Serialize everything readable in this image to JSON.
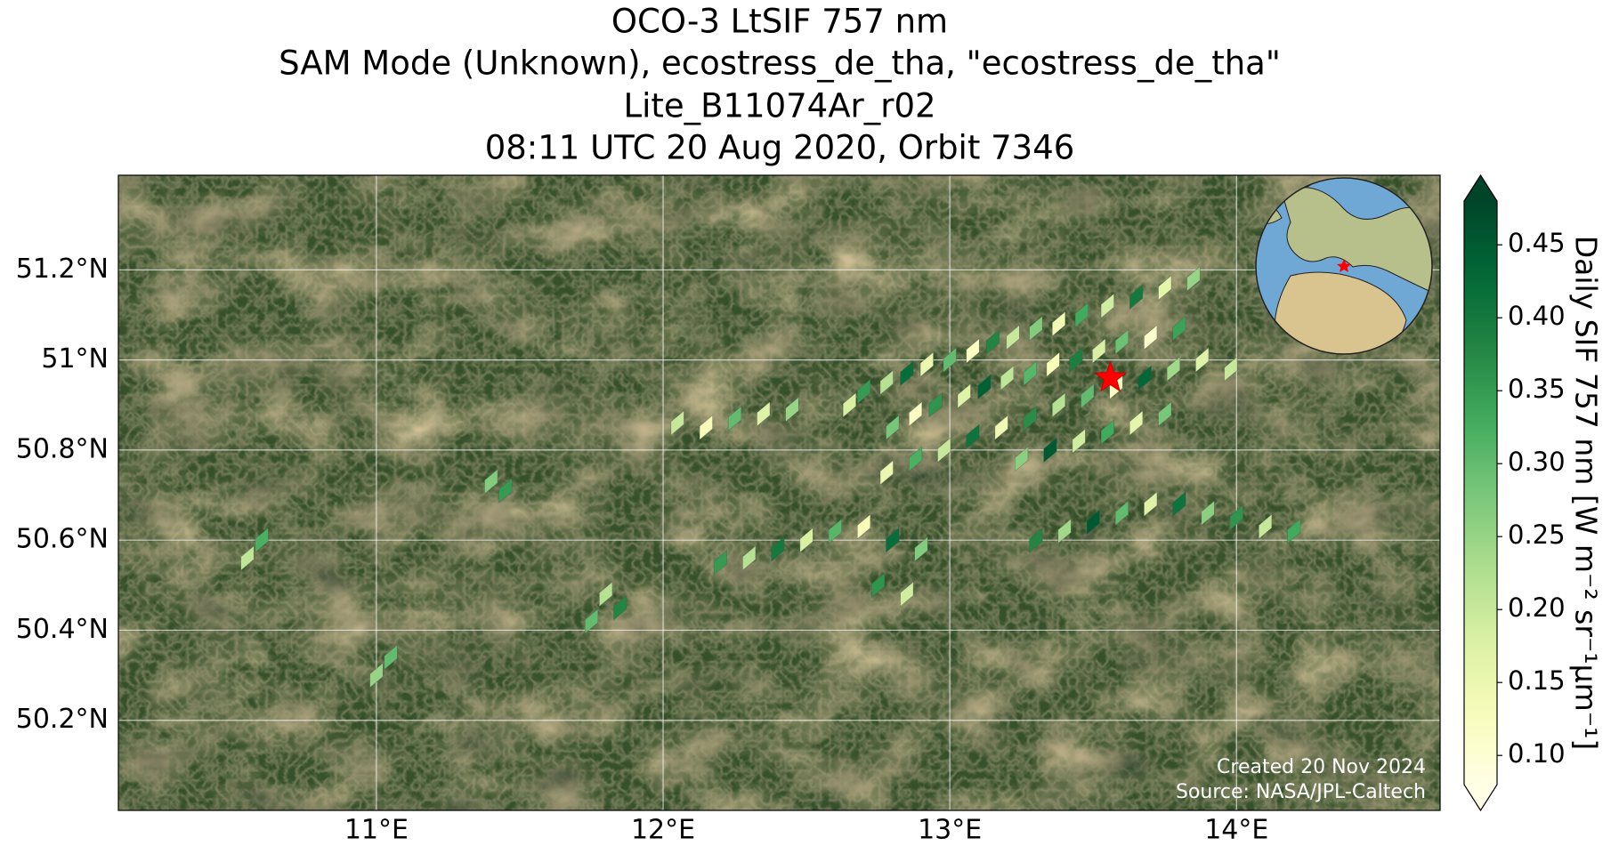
{
  "chart_data": {
    "type": "map",
    "title": [
      "OCO-3 LtSIF 757 nm",
      "SAM Mode (Unknown), ecostress_de_tha, \"ecostress_de_tha\"",
      "Lite_B11074Ar_r02",
      "08:11 UTC 20 Aug 2020, Orbit 7346"
    ],
    "xlim": [
      10.1,
      14.71
    ],
    "ylim": [
      50.0,
      51.41
    ],
    "xticks": [
      {
        "value": 11,
        "label": "11°E"
      },
      {
        "value": 12,
        "label": "12°E"
      },
      {
        "value": 13,
        "label": "13°E"
      },
      {
        "value": 14,
        "label": "14°E"
      }
    ],
    "yticks": [
      {
        "value": 50.2,
        "label": "50.2°N"
      },
      {
        "value": 50.4,
        "label": "50.4°N"
      },
      {
        "value": 50.6,
        "label": "50.6°N"
      },
      {
        "value": 50.8,
        "label": "50.8°N"
      },
      {
        "value": 51,
        "label": "51°N"
      },
      {
        "value": 51.2,
        "label": "51.2°N"
      }
    ],
    "grid": true,
    "colormap": "YlGn",
    "clim": [
      0.08,
      0.48
    ],
    "colorbar_ticks": [
      {
        "value": 0.1,
        "label": "0.10"
      },
      0.15,
      {
        "value": 0.2,
        "label": "0.20"
      },
      0.25,
      {
        "value": 0.3,
        "label": "0.30"
      },
      0.35,
      {
        "value": 0.4,
        "label": "0.40"
      },
      0.45
    ],
    "colorbar_label": "Daily SIF 757 nm [W m⁻² sr⁻¹µm⁻¹]",
    "target": [
      13.56,
      50.96
    ],
    "credits": [
      "Created 20 Nov 2024",
      "Source: NASA/JPL-Caltech"
    ],
    "lon": [
      12.65,
      12.7,
      12.78,
      12.85,
      12.92,
      13.0,
      13.08,
      13.15,
      13.22,
      13.3,
      13.38,
      13.46,
      13.55,
      13.65,
      13.75,
      13.85,
      12.8,
      12.88,
      12.95,
      13.05,
      13.12,
      13.2,
      13.28,
      13.36,
      13.44,
      13.52,
      13.6,
      13.7,
      13.8,
      12.78,
      12.88,
      12.98,
      13.08,
      13.18,
      13.28,
      13.38,
      13.48,
      13.58,
      13.68,
      13.78,
      13.88,
      13.25,
      13.35,
      13.45,
      13.55,
      13.65,
      13.75,
      12.05,
      12.15,
      12.25,
      12.35,
      12.45,
      12.2,
      12.3,
      12.4,
      12.5,
      12.6,
      12.7,
      12.8,
      12.9,
      12.75,
      12.85,
      13.3,
      13.4,
      13.5,
      13.6,
      13.7,
      13.8,
      13.9,
      14.0,
      14.1,
      14.2,
      11.4,
      11.45,
      11.8,
      11.85,
      11.75,
      10.6,
      10.55,
      11.05,
      11.0,
      13.98
    ],
    "lat": [
      50.9,
      50.93,
      50.95,
      50.97,
      50.99,
      51.0,
      51.02,
      51.04,
      51.05,
      51.07,
      51.08,
      51.1,
      51.12,
      51.14,
      51.16,
      51.18,
      50.85,
      50.88,
      50.9,
      50.92,
      50.94,
      50.96,
      50.97,
      50.99,
      51.0,
      51.02,
      51.04,
      51.05,
      51.07,
      50.75,
      50.78,
      50.8,
      50.83,
      50.85,
      50.87,
      50.9,
      50.92,
      50.94,
      50.96,
      50.98,
      51.0,
      50.78,
      50.8,
      50.82,
      50.84,
      50.86,
      50.88,
      50.86,
      50.85,
      50.87,
      50.88,
      50.89,
      50.55,
      50.56,
      50.58,
      50.6,
      50.62,
      50.63,
      50.6,
      50.58,
      50.5,
      50.48,
      50.6,
      50.62,
      50.64,
      50.66,
      50.68,
      50.68,
      50.66,
      50.65,
      50.63,
      50.62,
      50.73,
      50.71,
      50.48,
      50.45,
      50.42,
      50.6,
      50.56,
      50.34,
      50.3,
      50.98
    ],
    "values": [
      0.18,
      0.35,
      0.22,
      0.42,
      0.15,
      0.3,
      0.12,
      0.38,
      0.2,
      0.27,
      0.14,
      0.33,
      0.19,
      0.4,
      0.16,
      0.25,
      0.28,
      0.12,
      0.36,
      0.17,
      0.44,
      0.21,
      0.31,
      0.13,
      0.39,
      0.18,
      0.29,
      0.11,
      0.34,
      0.15,
      0.32,
      0.2,
      0.41,
      0.14,
      0.37,
      0.22,
      0.3,
      0.12,
      0.43,
      0.24,
      0.17,
      0.26,
      0.45,
      0.19,
      0.33,
      0.16,
      0.28,
      0.2,
      0.13,
      0.3,
      0.17,
      0.25,
      0.35,
      0.22,
      0.4,
      0.18,
      0.31,
      0.13,
      0.42,
      0.27,
      0.36,
      0.19,
      0.38,
      0.24,
      0.45,
      0.3,
      0.17,
      0.41,
      0.26,
      0.36,
      0.2,
      0.33,
      0.27,
      0.35,
      0.22,
      0.38,
      0.3,
      0.32,
      0.21,
      0.3,
      0.25,
      0.2
    ]
  }
}
